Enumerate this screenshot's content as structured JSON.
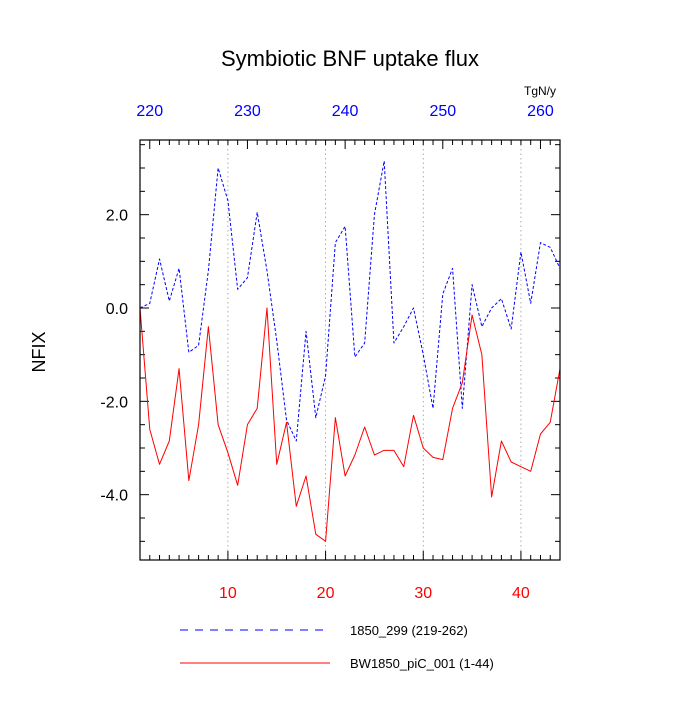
{
  "chart_data": {
    "type": "line",
    "title": "Symbiotic BNF uptake flux",
    "ylabel": "NFIX",
    "units": "TgN/y",
    "ylim": [
      -5.4,
      3.6
    ],
    "y_ticks": [
      {
        "value": 2.0,
        "label": "2.0"
      },
      {
        "value": 0.0,
        "label": "0.0"
      },
      {
        "value": -2.0,
        "label": "-2.0"
      },
      {
        "value": -4.0,
        "label": "-4.0"
      }
    ],
    "bottom_axis": {
      "range": [
        1,
        44
      ],
      "color": "#ff0000",
      "ticks": [
        {
          "value": 10,
          "label": "10"
        },
        {
          "value": 20,
          "label": "20"
        },
        {
          "value": 30,
          "label": "30"
        },
        {
          "value": 40,
          "label": "40"
        }
      ]
    },
    "top_axis": {
      "range": [
        219,
        262
      ],
      "color": "#0000ff",
      "ticks": [
        {
          "value": 220,
          "label": "220"
        },
        {
          "value": 230,
          "label": "230"
        },
        {
          "value": 240,
          "label": "240"
        },
        {
          "value": 250,
          "label": "250"
        },
        {
          "value": 260,
          "label": "260"
        }
      ]
    },
    "vertical_grid": [
      10,
      20,
      30,
      40
    ],
    "series": [
      {
        "name": "1850_299 (219-262)",
        "color": "#0000ff",
        "style": "dashed",
        "x_start": 219,
        "values": [
          0.0,
          0.1,
          1.05,
          0.15,
          0.85,
          -0.95,
          -0.8,
          0.8,
          3.0,
          2.3,
          0.4,
          0.65,
          2.05,
          0.8,
          -0.7,
          -2.4,
          -2.85,
          -0.5,
          -2.35,
          -1.45,
          1.4,
          1.75,
          -1.05,
          -0.75,
          2.0,
          3.15,
          -0.75,
          -0.4,
          0.0,
          -1.0,
          -2.15,
          0.3,
          0.85,
          -2.15,
          0.5,
          -0.4,
          0.0,
          0.2,
          -0.45,
          1.2,
          0.1,
          1.4,
          1.3,
          0.85
        ]
      },
      {
        "name": "BW1850_piC_001 (1-44)",
        "color": "#ff0000",
        "style": "solid",
        "x_start": 1,
        "values": [
          0.0,
          -2.6,
          -3.35,
          -2.85,
          -1.3,
          -3.7,
          -2.5,
          -0.4,
          -2.5,
          -3.1,
          -3.8,
          -2.5,
          -2.15,
          0.0,
          -3.35,
          -2.45,
          -4.25,
          -3.6,
          -4.85,
          -5.0,
          -2.35,
          -3.6,
          -3.15,
          -2.55,
          -3.15,
          -3.05,
          -3.05,
          -3.4,
          -2.3,
          -3.0,
          -3.2,
          -3.25,
          -2.15,
          -1.6,
          -0.15,
          -1.0,
          -4.05,
          -2.85,
          -3.3,
          -3.4,
          -3.5,
          -2.7,
          -2.45,
          -1.3
        ]
      }
    ],
    "legend": {
      "placement": "bottom",
      "entries": [
        "1850_299 (219-262)",
        "BW1850_piC_001 (1-44)"
      ]
    }
  }
}
